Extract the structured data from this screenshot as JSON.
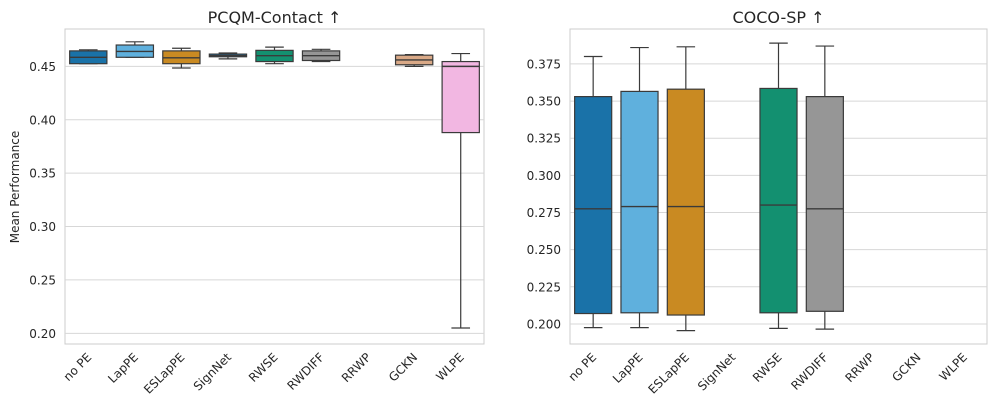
{
  "chart_data": [
    {
      "type": "box",
      "title": "PCQM-Contact ↑",
      "ylabel": "Mean Performance",
      "xlabel": "",
      "ylim": [
        0.19,
        0.485
      ],
      "yticks": [
        0.2,
        0.25,
        0.3,
        0.35,
        0.4,
        0.45
      ],
      "ytick_labels": [
        "0.20",
        "0.25",
        "0.30",
        "0.35",
        "0.40",
        "0.45"
      ],
      "grid": true,
      "categories": [
        "no PE",
        "LapPE",
        "ESLapPE",
        "SignNet",
        "RWSE",
        "RWDIFF",
        "RRWP",
        "GCKN",
        "WLPE"
      ],
      "boxes": [
        {
          "category": "no PE",
          "color": "#1a72a8",
          "whisker_low": 0.4525,
          "q1": 0.4525,
          "median": 0.4585,
          "q3": 0.4645,
          "whisker_high": 0.4655
        },
        {
          "category": "LapPE",
          "color": "#5fb0dd",
          "whisker_low": 0.4585,
          "q1": 0.4585,
          "median": 0.464,
          "q3": 0.47,
          "whisker_high": 0.473
        },
        {
          "category": "ESLapPE",
          "color": "#c98a22",
          "whisker_low": 0.4485,
          "q1": 0.4525,
          "median": 0.458,
          "q3": 0.4645,
          "whisker_high": 0.467
        },
        {
          "category": "SignNet",
          "color": "#1a72a8",
          "whisker_low": 0.457,
          "q1": 0.459,
          "median": 0.46,
          "q3": 0.4615,
          "whisker_high": 0.4625
        },
        {
          "category": "RWSE",
          "color": "#139070",
          "whisker_low": 0.4525,
          "q1": 0.4545,
          "median": 0.46,
          "q3": 0.465,
          "whisker_high": 0.468
        },
        {
          "category": "RWDIFF",
          "color": "#969696",
          "whisker_low": 0.4545,
          "q1": 0.4555,
          "median": 0.46,
          "q3": 0.4645,
          "whisker_high": 0.466
        },
        {
          "category": "GCKN",
          "color": "#d9a987",
          "whisker_low": 0.45,
          "q1": 0.4515,
          "median": 0.456,
          "q3": 0.4605,
          "whisker_high": 0.461
        },
        {
          "category": "WLPE",
          "color": "#f2b7e2",
          "whisker_low": 0.205,
          "q1": 0.388,
          "median": 0.45,
          "q3": 0.4545,
          "whisker_high": 0.462
        }
      ]
    },
    {
      "type": "box",
      "title": "COCO-SP ↑",
      "ylabel": "",
      "xlabel": "",
      "ylim": [
        0.1865,
        0.3985
      ],
      "yticks": [
        0.2,
        0.225,
        0.25,
        0.275,
        0.3,
        0.325,
        0.35,
        0.375
      ],
      "ytick_labels": [
        "0.200",
        "0.225",
        "0.250",
        "0.275",
        "0.300",
        "0.325",
        "0.350",
        "0.375"
      ],
      "grid": true,
      "categories": [
        "no PE",
        "LapPE",
        "ESLapPE",
        "SignNet",
        "RWSE",
        "RWDIFF",
        "RRWP",
        "GCKN",
        "WLPE"
      ],
      "boxes": [
        {
          "category": "no PE",
          "color": "#1a72a8",
          "whisker_low": 0.1975,
          "q1": 0.207,
          "median": 0.2775,
          "q3": 0.353,
          "whisker_high": 0.38
        },
        {
          "category": "LapPE",
          "color": "#5fb0dd",
          "whisker_low": 0.1975,
          "q1": 0.2075,
          "median": 0.279,
          "q3": 0.3565,
          "whisker_high": 0.386
        },
        {
          "category": "ESLapPE",
          "color": "#c98a22",
          "whisker_low": 0.1955,
          "q1": 0.206,
          "median": 0.279,
          "q3": 0.358,
          "whisker_high": 0.3865
        },
        {
          "category": "RWSE",
          "color": "#139070",
          "whisker_low": 0.197,
          "q1": 0.2075,
          "median": 0.28,
          "q3": 0.3585,
          "whisker_high": 0.389
        },
        {
          "category": "RWDIFF",
          "color": "#969696",
          "whisker_low": 0.1965,
          "q1": 0.2085,
          "median": 0.2775,
          "q3": 0.353,
          "whisker_high": 0.387
        }
      ]
    }
  ]
}
